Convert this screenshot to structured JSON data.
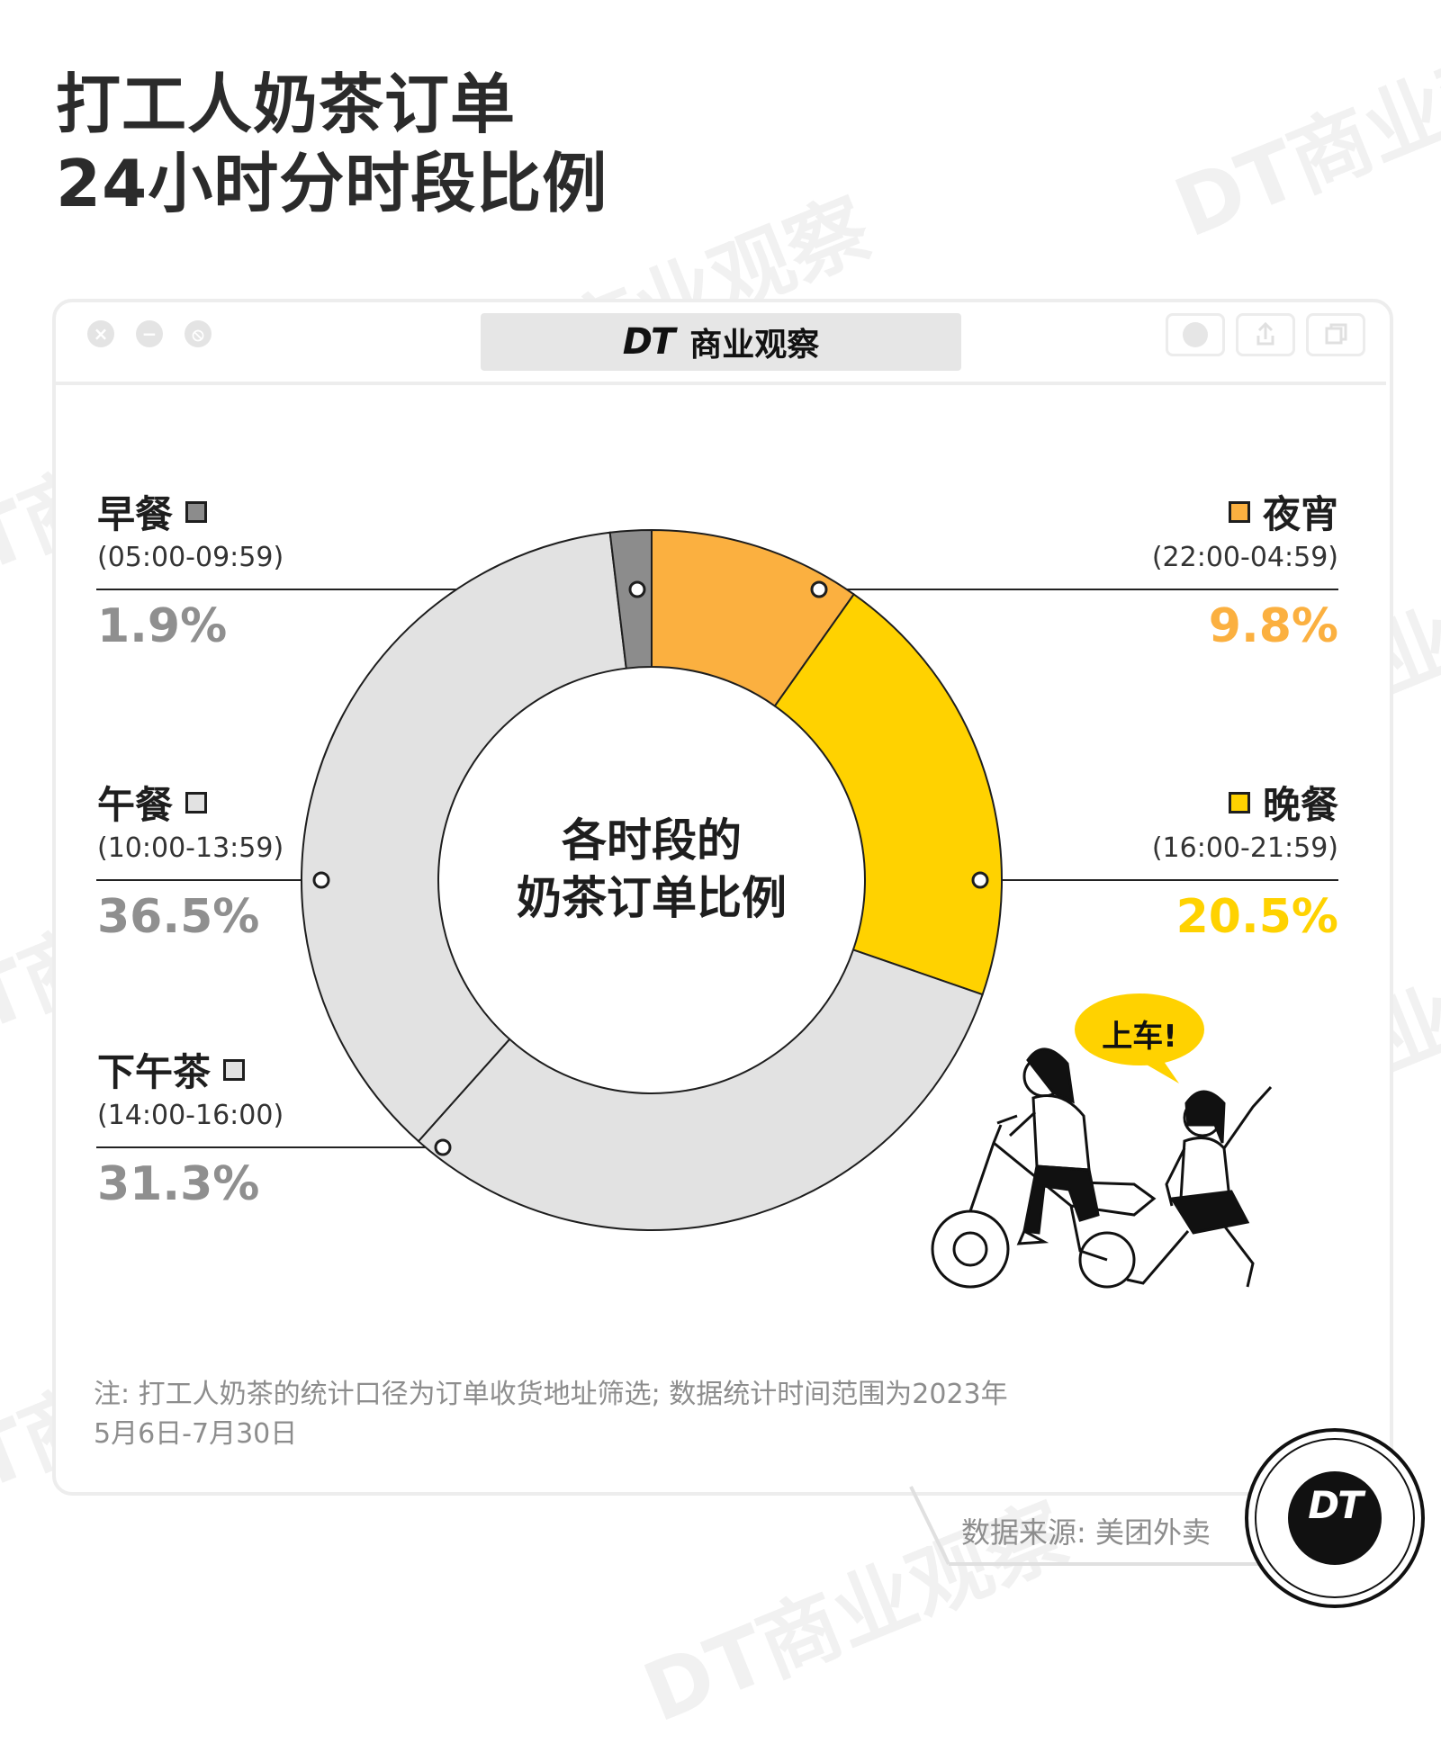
{
  "title_lines": [
    "打工人奶茶订单",
    "24小时分时段比例"
  ],
  "brand": {
    "logo": "DT",
    "name": "商业观察"
  },
  "watermark_text": "DT商业观察",
  "window_controls": [
    "close-icon",
    "minimize-icon",
    "block-icon"
  ],
  "toolbar_tools": [
    "record-icon",
    "share-icon",
    "copy-icon"
  ],
  "chart_data": {
    "type": "pie",
    "style": "donut",
    "center_label": [
      "各时段的",
      "奶茶订单比例"
    ],
    "slices": [
      {
        "name": "夜宵",
        "time": "(22:00-04:59)",
        "value": 9.8,
        "label": "9.8%",
        "color": "#fbb040"
      },
      {
        "name": "晚餐",
        "time": "(16:00-21:59)",
        "value": 20.5,
        "label": "20.5%",
        "color": "#ffd200"
      },
      {
        "name": "下午茶",
        "time": "(14:00-16:00)",
        "value": 31.3,
        "label": "31.3%",
        "color": "#e2e2e2"
      },
      {
        "name": "午餐",
        "time": "(10:00-13:59)",
        "value": 36.5,
        "label": "36.5%",
        "color": "#e2e2e2"
      },
      {
        "name": "早餐",
        "time": "(05:00-09:59)",
        "value": 1.9,
        "label": "1.9%",
        "color": "#8c8c8c"
      }
    ],
    "legend": {
      "left": [
        {
          "slice": 4,
          "pct_color": "#8f8f8f"
        },
        {
          "slice": 3,
          "pct_color": "#8f8f8f"
        },
        {
          "slice": 2,
          "pct_color": "#8f8f8f"
        }
      ],
      "right": [
        {
          "slice": 0,
          "pct_color": "#fbb040"
        },
        {
          "slice": 1,
          "pct_color": "#ffd200"
        }
      ]
    }
  },
  "illustration": {
    "speech": "上车!"
  },
  "note": [
    "注: 打工人奶茶的统计口径为订单收货地址筛选; 数据统计时间范围为2023年",
    "5月6日-7月30日"
  ],
  "source": "数据来源: 美团外卖",
  "badge": "DT"
}
